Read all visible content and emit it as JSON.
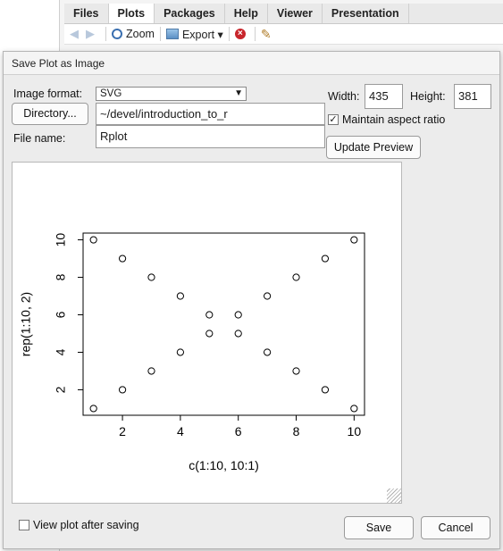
{
  "rstudio": {
    "tabs": [
      "Files",
      "Plots",
      "Packages",
      "Help",
      "Viewer",
      "Presentation"
    ],
    "active_tab": "Plots",
    "toolbar": {
      "zoom_label": "Zoom",
      "export_label": "Export ▾"
    }
  },
  "dialog": {
    "title": "Save Plot as Image",
    "image_format_label": "Image format:",
    "image_format_value": "SVG",
    "directory_button": "Directory...",
    "directory_path": "~/devel/introduction_to_r",
    "file_name_label": "File name:",
    "file_name_value": "Rplot",
    "width_label": "Width:",
    "width_value": "435",
    "height_label": "Height:",
    "height_value": "381",
    "maintain_aspect_label": "Maintain aspect ratio",
    "maintain_aspect_checked": true,
    "update_preview_button": "Update Preview",
    "view_after_saving_label": "View plot after saving",
    "view_after_saving_checked": false,
    "save_button": "Save",
    "cancel_button": "Cancel"
  },
  "chart_data": {
    "type": "scatter",
    "xlabel": "c(1:10, 10:1)",
    "ylabel": "rep(1:10, 2)",
    "xlim": [
      0.64,
      10.36
    ],
    "ylim": [
      0.64,
      10.36
    ],
    "xticks": [
      2,
      4,
      6,
      8,
      10
    ],
    "yticks": [
      2,
      4,
      6,
      8,
      10
    ],
    "x": [
      1,
      2,
      3,
      4,
      5,
      6,
      7,
      8,
      9,
      10,
      10,
      9,
      8,
      7,
      6,
      5,
      4,
      3,
      2,
      1
    ],
    "y": [
      1,
      2,
      3,
      4,
      5,
      6,
      7,
      8,
      9,
      10,
      1,
      2,
      3,
      4,
      5,
      6,
      7,
      8,
      9,
      10
    ],
    "marker": "open-circle",
    "grid": false
  }
}
